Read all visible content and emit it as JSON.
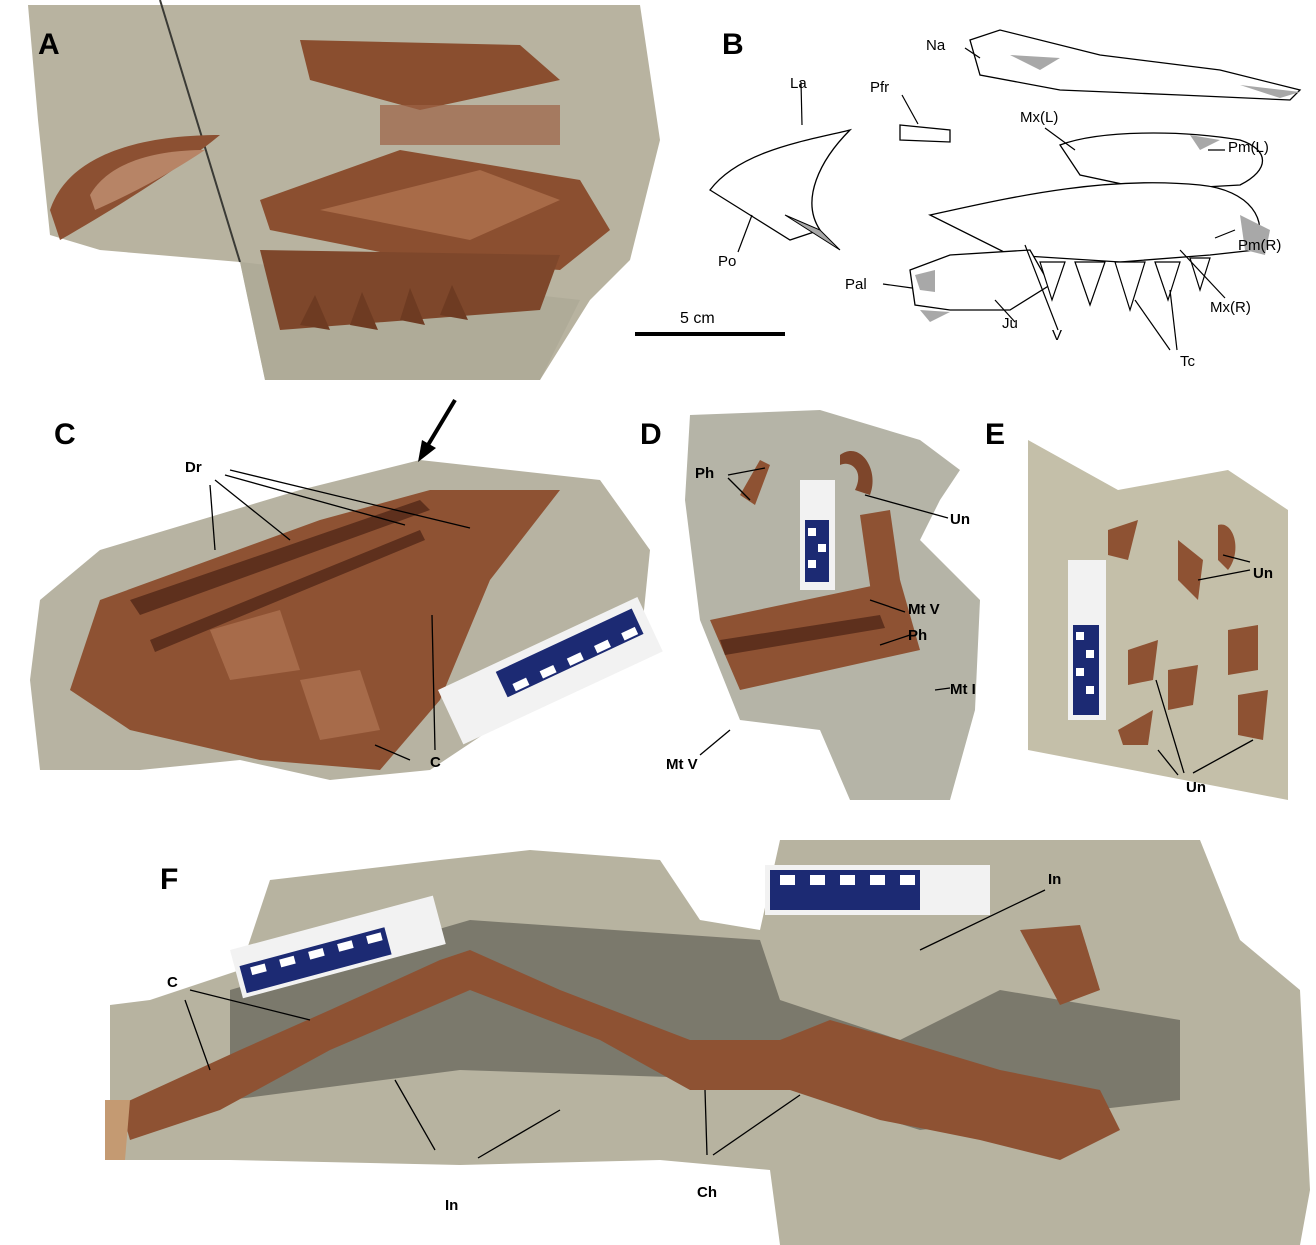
{
  "figure": {
    "panels": [
      {
        "id": "A",
        "label": "A"
      },
      {
        "id": "B",
        "label": "B"
      },
      {
        "id": "C",
        "label": "C"
      },
      {
        "id": "D",
        "label": "D"
      },
      {
        "id": "E",
        "label": "E"
      },
      {
        "id": "F",
        "label": "F"
      }
    ]
  },
  "panel_b": {
    "labels": {
      "Na": "Na",
      "La": "La",
      "Pfr": "Pfr",
      "MxL": "Mx(L)",
      "PmL": "Pm(L)",
      "Po": "Po",
      "Pal": "Pal",
      "PmR": "Pm(R)",
      "MxR": "Mx(R)",
      "Ju": "Ju",
      "V": "V",
      "Tc": "Tc"
    },
    "scale_bar": "5 cm"
  },
  "panel_c": {
    "labels": {
      "Dr": "Dr",
      "C": "C"
    }
  },
  "panel_d": {
    "labels": {
      "Ph1": "Ph",
      "Un": "Un",
      "MtV1": "Mt V",
      "Ph2": "Ph",
      "MtI": "Mt I",
      "MtV2": "Mt V"
    }
  },
  "panel_e": {
    "labels": {
      "Un1": "Un",
      "Un2": "Un"
    }
  },
  "panel_f": {
    "labels": {
      "In1": "In",
      "C": "C",
      "In2": "In",
      "Ch": "Ch"
    }
  },
  "colors": {
    "rock": "#b9b6a6",
    "bone": "#9a5a3a",
    "line_drawing": "#000000",
    "gray_fill": "#a8a8a8",
    "scale_blue": "#1c2a73"
  }
}
